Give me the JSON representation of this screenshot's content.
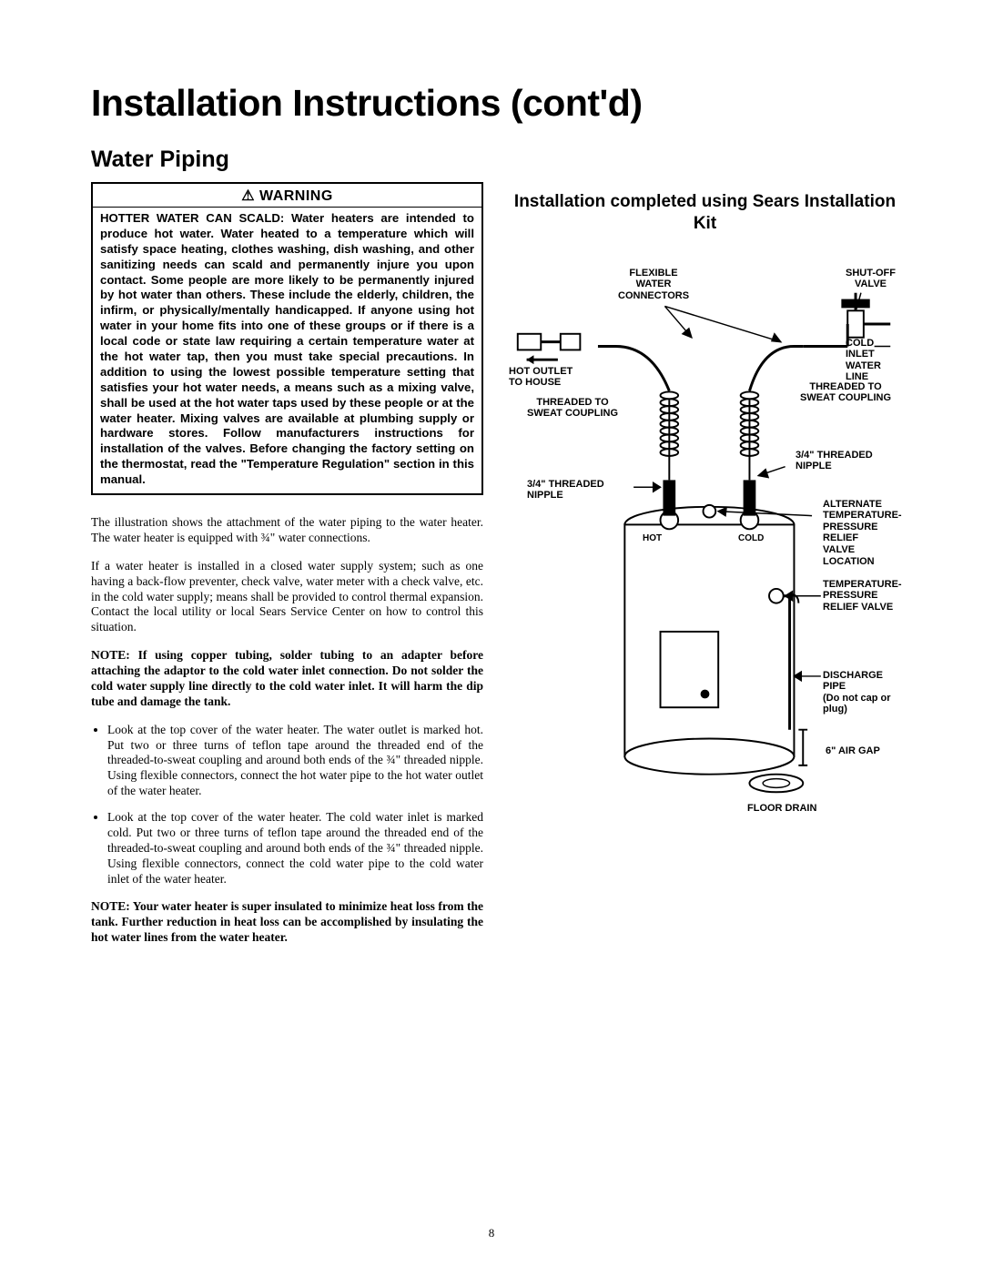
{
  "page": {
    "number": "8"
  },
  "title": "Installation Instructions (cont'd)",
  "section": "Water Piping",
  "warning": {
    "heading": "⚠ WARNING",
    "body": "HOTTER WATER CAN SCALD: Water heaters are intended to produce hot water. Water heated to a temperature which will satisfy space heating, clothes washing, dish washing, and other sanitizing needs can scald and permanently injure you upon contact. Some people are more likely to be permanently injured by hot water than others. These include the elderly, children, the infirm, or physically/mentally handicapped. If anyone using hot water in your home fits into one of these groups or if there is a local code or state law requiring a certain temperature water at the hot water tap, then you must take special precautions. In addition to using the lowest possible temperature setting that satisfies your hot water needs, a means such as a mixing valve, shall be used at the hot water taps used by these people or at the water heater. Mixing valves are available at plumbing supply or hardware stores. Follow manufacturers instructions for installation of the valves. Before changing the factory setting on the thermostat, read the \"Temperature Regulation\" section in this manual."
  },
  "body": {
    "p1": "The illustration shows the attachment of the water piping to the water heater. The water heater is equipped with ¾\" water connections.",
    "p2": "If a water heater is installed in a closed water supply system; such as one having a back-flow preventer, check valve, water meter with a check valve, etc. in the cold water supply; means shall be provided to control thermal expansion. Contact the local utility or local Sears Service Center on how to control this situation.",
    "note1_lead": "NOTE: ",
    "note1": "If using copper tubing, solder tubing to an adapter before attaching the adaptor to the cold water inlet connection. Do not solder the cold water supply line directly to the cold water inlet. It will harm the dip tube and damage the tank.",
    "bullet1": "Look at the top cover of the water heater. The water outlet is marked hot. Put two or three turns of teflon tape around the threaded end of the threaded-to-sweat coupling and around both ends of the ¾\" threaded nipple. Using flexible connectors, connect the hot water pipe to the hot water outlet of the water heater.",
    "bullet2": "Look at the top cover of the water heater. The cold water inlet is marked cold. Put two or three turns of teflon tape around the threaded end of the threaded-to-sweat coupling and around both ends of the ¾\" threaded nipple. Using flexible connectors, connect the cold water pipe to the cold water inlet of the water heater.",
    "note2_lead": "NOTE: ",
    "note2": "Your water heater is super insulated to minimize heat loss from the tank. Further reduction in heat loss can be accomplished by insulating the hot water lines from the water heater."
  },
  "right_title": "Installation completed using Sears Installation Kit",
  "diagram": {
    "labels": {
      "flexible_water_connectors": "FLEXIBLE\nWATER\nCONNECTORS",
      "shutoff_valve": "SHUT-OFF\nVALVE",
      "cold_inlet_water_line": "COLD INLET\nWATER LINE",
      "hot_outlet_to_house": "HOT OUTLET\nTO HOUSE",
      "threaded_to_sweat_coupling_left": "THREADED TO\nSWEAT COUPLING",
      "threaded_to_sweat_coupling_right": "THREADED TO\nSWEAT COUPLING",
      "nipple_left": "3/4\" THREADED\nNIPPLE",
      "nipple_right": "3/4\" THREADED\nNIPPLE",
      "alt_tpr_location": "ALTERNATE\nTEMPERATURE-\nPRESSURE RELIEF\nVALVE LOCATION",
      "hot": "HOT",
      "cold": "COLD",
      "tpr_valve": "TEMPERATURE-\nPRESSURE\nRELIEF VALVE",
      "discharge_pipe": "DISCHARGE PIPE\n(Do not cap or plug)",
      "air_gap": "6\" AIR GAP",
      "floor_drain": "FLOOR DRAIN"
    },
    "style": {
      "tank_stroke": "#000000",
      "tank_fill": "#ffffff",
      "label_fontsize": 11,
      "label_fontweight": 900
    }
  }
}
